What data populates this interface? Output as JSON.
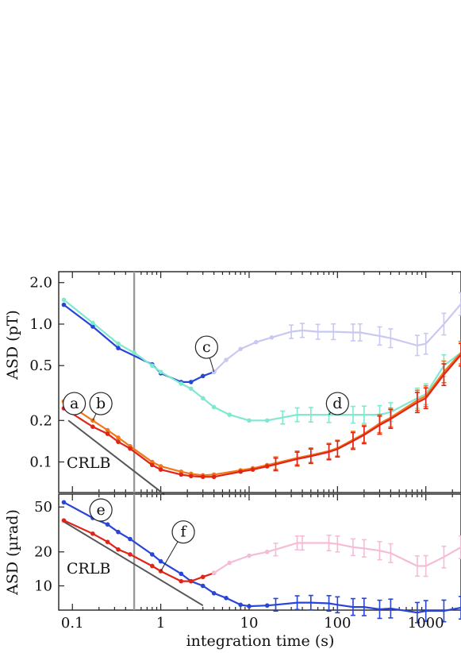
{
  "chart_data": [
    {
      "type": "line",
      "ylabel": "ASD (pT)",
      "yscale": "log",
      "xscale": "log",
      "xlim": [
        0.07,
        2500
      ],
      "ylim": [
        0.06,
        2.4
      ],
      "yticks": [
        {
          "v": 2.0,
          "label": "2.0"
        },
        {
          "v": 1.0,
          "label": "1.0"
        },
        {
          "v": 0.5,
          "label": "0.5"
        },
        {
          "v": 0.2,
          "label": "0.2"
        },
        {
          "v": 0.1,
          "label": "0.1"
        }
      ],
      "crlb_label": "CRLB",
      "crlb": [
        [
          0.09,
          0.2
        ],
        [
          1.1,
          0.058
        ]
      ],
      "vline_x": 0.5,
      "series": [
        {
          "marker": "c",
          "color": "#2845d8",
          "points": [
            [
              0.08,
              1.38
            ],
            [
              0.17,
              0.96
            ],
            [
              0.33,
              0.67
            ],
            [
              0.8,
              0.51
            ],
            [
              1.0,
              0.44
            ],
            [
              1.7,
              0.38
            ],
            [
              2.2,
              0.38
            ],
            [
              3.0,
              0.42
            ],
            [
              4.0,
              0.45
            ]
          ]
        },
        {
          "marker": "c",
          "color": "#c8c8f0",
          "points": [
            [
              4.0,
              0.45
            ],
            [
              5.5,
              0.55
            ],
            [
              8,
              0.66
            ],
            [
              12,
              0.74
            ],
            [
              18,
              0.8
            ],
            [
              30,
              0.88
            ],
            [
              40,
              0.9
            ],
            [
              60,
              0.88
            ],
            [
              90,
              0.88
            ],
            [
              150,
              0.87
            ],
            [
              180,
              0.87
            ],
            [
              300,
              0.82
            ],
            [
              400,
              0.79
            ],
            [
              800,
              0.7
            ],
            [
              1000,
              0.72
            ],
            [
              1600,
              1.0
            ],
            [
              2500,
              1.4
            ]
          ]
        },
        {
          "marker": "d",
          "color": "#7ee8d0",
          "points": [
            [
              0.08,
              1.5
            ],
            [
              0.17,
              1.02
            ],
            [
              0.33,
              0.72
            ],
            [
              0.5,
              0.62
            ],
            [
              0.8,
              0.5
            ],
            [
              1.0,
              0.45
            ],
            [
              1.7,
              0.37
            ],
            [
              2.2,
              0.34
            ],
            [
              3.0,
              0.29
            ],
            [
              4.0,
              0.25
            ],
            [
              6,
              0.22
            ],
            [
              10,
              0.2
            ],
            [
              16,
              0.2
            ],
            [
              24,
              0.21
            ],
            [
              35,
              0.22
            ],
            [
              50,
              0.22
            ],
            [
              80,
              0.22
            ],
            [
              150,
              0.22
            ],
            [
              200,
              0.22
            ],
            [
              300,
              0.22
            ],
            [
              400,
              0.23
            ],
            [
              800,
              0.29
            ],
            [
              1000,
              0.31
            ],
            [
              1600,
              0.5
            ],
            [
              2500,
              0.62
            ]
          ]
        },
        {
          "marker": "b",
          "color": "#f07818",
          "points": [
            [
              0.08,
              0.275
            ],
            [
              0.17,
              0.2
            ],
            [
              0.25,
              0.17
            ],
            [
              0.33,
              0.15
            ],
            [
              0.45,
              0.13
            ],
            [
              0.8,
              0.1
            ],
            [
              1.0,
              0.093
            ],
            [
              1.7,
              0.085
            ],
            [
              2.2,
              0.082
            ],
            [
              3.0,
              0.08
            ],
            [
              4.0,
              0.081
            ],
            [
              8,
              0.087
            ],
            [
              11,
              0.09
            ],
            [
              16,
              0.095
            ],
            [
              20,
              0.098
            ],
            [
              35,
              0.107
            ],
            [
              50,
              0.112
            ],
            [
              80,
              0.12
            ],
            [
              100,
              0.126
            ],
            [
              150,
              0.145
            ],
            [
              200,
              0.16
            ],
            [
              300,
              0.19
            ],
            [
              400,
              0.21
            ],
            [
              800,
              0.28
            ],
            [
              1000,
              0.3
            ],
            [
              1600,
              0.45
            ],
            [
              2500,
              0.62
            ]
          ]
        },
        {
          "marker": "a",
          "color": "#e02418",
          "points": [
            [
              0.08,
              0.245
            ],
            [
              0.17,
              0.18
            ],
            [
              0.25,
              0.16
            ],
            [
              0.33,
              0.14
            ],
            [
              0.45,
              0.125
            ],
            [
              0.8,
              0.095
            ],
            [
              1.0,
              0.088
            ],
            [
              1.7,
              0.081
            ],
            [
              2.2,
              0.079
            ],
            [
              3.0,
              0.078
            ],
            [
              4.0,
              0.078
            ],
            [
              8,
              0.085
            ],
            [
              11,
              0.088
            ],
            [
              16,
              0.093
            ],
            [
              20,
              0.096
            ],
            [
              35,
              0.105
            ],
            [
              50,
              0.11
            ],
            [
              80,
              0.118
            ],
            [
              100,
              0.124
            ],
            [
              150,
              0.142
            ],
            [
              200,
              0.157
            ],
            [
              300,
              0.185
            ],
            [
              400,
              0.205
            ],
            [
              800,
              0.27
            ],
            [
              1000,
              0.29
            ],
            [
              1600,
              0.43
            ],
            [
              2500,
              0.6
            ]
          ]
        }
      ],
      "annotations": [
        {
          "text": "a",
          "lx": 0.105,
          "ly": 0.265
        },
        {
          "text": "b",
          "lx": 0.21,
          "ly": 0.265
        },
        {
          "text": "c",
          "lx": 3.3,
          "ly": 0.68
        },
        {
          "text": "d",
          "lx": 100,
          "ly": 0.265
        }
      ]
    },
    {
      "type": "line",
      "ylabel": "ASD (µrad)",
      "yscale": "log",
      "xscale": "log",
      "xlim": [
        0.07,
        2500
      ],
      "ylim": [
        6.1,
        65
      ],
      "yticks": [
        {
          "v": 50,
          "label": "50"
        },
        {
          "v": 20,
          "label": "20"
        },
        {
          "v": 10,
          "label": "10"
        }
      ],
      "crlb_label": "CRLB",
      "crlb": [
        [
          0.08,
          37
        ],
        [
          3.0,
          6.7
        ]
      ],
      "vline_x": 0.5,
      "series": [
        {
          "marker": "e",
          "color": "#2845d8",
          "points": [
            [
              0.08,
              55
            ],
            [
              0.17,
              40
            ],
            [
              0.25,
              35
            ],
            [
              0.33,
              30
            ],
            [
              0.45,
              26
            ],
            [
              0.8,
              19
            ],
            [
              1.0,
              16.5
            ],
            [
              1.7,
              12.8
            ],
            [
              2.2,
              11
            ],
            [
              3.0,
              10
            ],
            [
              4.0,
              8.6
            ],
            [
              5.5,
              7.8
            ],
            [
              8,
              6.8
            ],
            [
              10,
              6.6
            ],
            [
              16,
              6.7
            ],
            [
              20,
              6.8
            ],
            [
              35,
              7.1
            ],
            [
              50,
              7.1
            ],
            [
              80,
              7.0
            ],
            [
              100,
              6.8
            ],
            [
              150,
              6.5
            ],
            [
              200,
              6.5
            ],
            [
              300,
              6.2
            ],
            [
              400,
              6.3
            ],
            [
              800,
              5.8
            ],
            [
              1000,
              6.0
            ],
            [
              1600,
              6.0
            ],
            [
              2500,
              6.4
            ]
          ]
        },
        {
          "marker": "f",
          "color": "#e02418",
          "points": [
            [
              0.08,
              38
            ],
            [
              0.17,
              29
            ],
            [
              0.25,
              24.5
            ],
            [
              0.33,
              21
            ],
            [
              0.45,
              19
            ],
            [
              0.8,
              15
            ],
            [
              1.0,
              13.5
            ],
            [
              1.7,
              11
            ],
            [
              2.2,
              11
            ],
            [
              3.0,
              12
            ],
            [
              4.0,
              13
            ]
          ]
        },
        {
          "marker": "f",
          "color": "#f5bcd8",
          "points": [
            [
              4.0,
              13
            ],
            [
              6,
              16
            ],
            [
              10,
              18.5
            ],
            [
              16,
              20
            ],
            [
              20,
              21
            ],
            [
              35,
              24
            ],
            [
              40,
              24
            ],
            [
              80,
              24
            ],
            [
              100,
              23.5
            ],
            [
              150,
              22
            ],
            [
              200,
              21.5
            ],
            [
              300,
              20.5
            ],
            [
              400,
              19.5
            ],
            [
              800,
              15
            ],
            [
              1000,
              15
            ],
            [
              1600,
              18
            ],
            [
              2500,
              22
            ]
          ]
        }
      ],
      "annotations": [
        {
          "text": "e",
          "lx": 0.21,
          "ly": 47
        },
        {
          "text": "f",
          "lx": 1.8,
          "ly": 30
        }
      ]
    }
  ],
  "xaxis": {
    "label": "integration time (s)",
    "ticks": [
      {
        "v": 0.1,
        "label": "0.1"
      },
      {
        "v": 1,
        "label": "1"
      },
      {
        "v": 10,
        "label": "10"
      },
      {
        "v": 100,
        "label": "100"
      },
      {
        "v": 1000,
        "label": "1000"
      }
    ]
  }
}
